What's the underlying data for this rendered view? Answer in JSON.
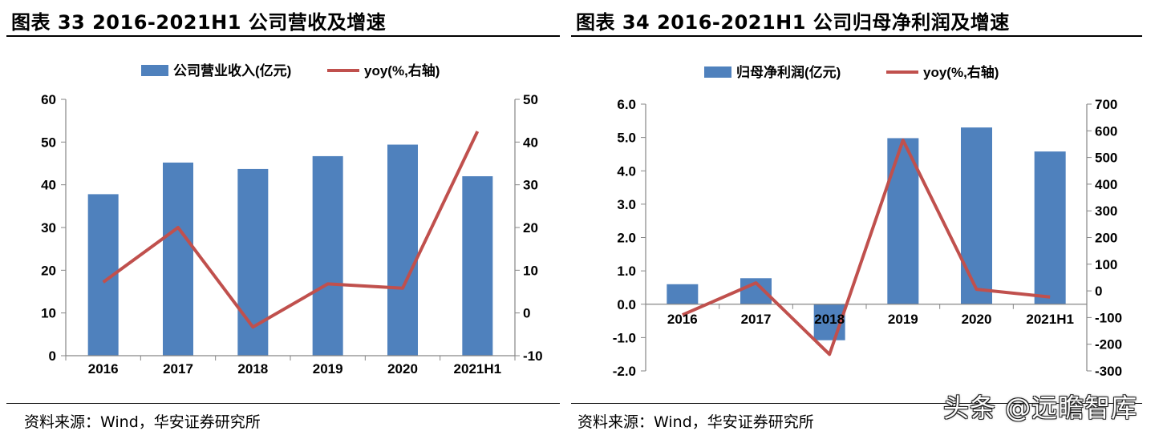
{
  "panels": [
    {
      "title": "图表 33 2016-2021H1 公司营收及增速",
      "source": "资料来源：Wind，华安证券研究所"
    },
    {
      "title": "图表 34 2016-2021H1 公司归母净利润及增速",
      "source": "资料来源：Wind，华安证券研究所"
    }
  ],
  "watermark": "头条 @远瞻智库",
  "colors": {
    "bar": "#4F81BD",
    "line": "#C0504D",
    "axis": "#868686"
  },
  "chart_data": [
    {
      "type": "bar",
      "categories": [
        "2016",
        "2017",
        "2018",
        "2019",
        "2020",
        "2021H1"
      ],
      "series": [
        {
          "name": "公司营业收入(亿元)",
          "type": "bar",
          "axis": "left",
          "values": [
            37.8,
            45.2,
            43.7,
            46.7,
            49.4,
            42.0
          ]
        },
        {
          "name": "yoy(%,右轴)",
          "type": "line",
          "axis": "right",
          "values": [
            7.2,
            20.0,
            -3.3,
            6.8,
            5.8,
            42.5
          ]
        }
      ],
      "ylim": [
        0,
        60
      ],
      "yticks": [
        "60",
        "50",
        "40",
        "30",
        "20",
        "10",
        "0"
      ],
      "y2lim": [
        -10,
        50
      ],
      "y2ticks": [
        "50",
        "40",
        "30",
        "20",
        "10",
        "0",
        "-10"
      ],
      "legend_position": "top",
      "grid": false
    },
    {
      "type": "bar",
      "categories": [
        "2016",
        "2017",
        "2018",
        "2019",
        "2020",
        "2021H1"
      ],
      "series": [
        {
          "name": "归母净利润(亿元)",
          "type": "bar",
          "axis": "left",
          "values": [
            0.6,
            0.78,
            -1.08,
            4.98,
            5.3,
            4.58
          ]
        },
        {
          "name": "yoy(%,右轴)",
          "type": "line",
          "axis": "right",
          "values": [
            -90,
            30,
            -238,
            565,
            6,
            -23
          ]
        }
      ],
      "ylim": [
        -2.0,
        6.0
      ],
      "yticks": [
        "6.0",
        "5.0",
        "4.0",
        "3.0",
        "2.0",
        "1.0",
        "0.0",
        "-1.0",
        "-2.0"
      ],
      "y2lim": [
        -300,
        700
      ],
      "y2ticks": [
        "700",
        "600",
        "500",
        "400",
        "300",
        "200",
        "100",
        "0",
        "-100",
        "-200",
        "-300"
      ],
      "legend_position": "top",
      "grid": false
    }
  ]
}
